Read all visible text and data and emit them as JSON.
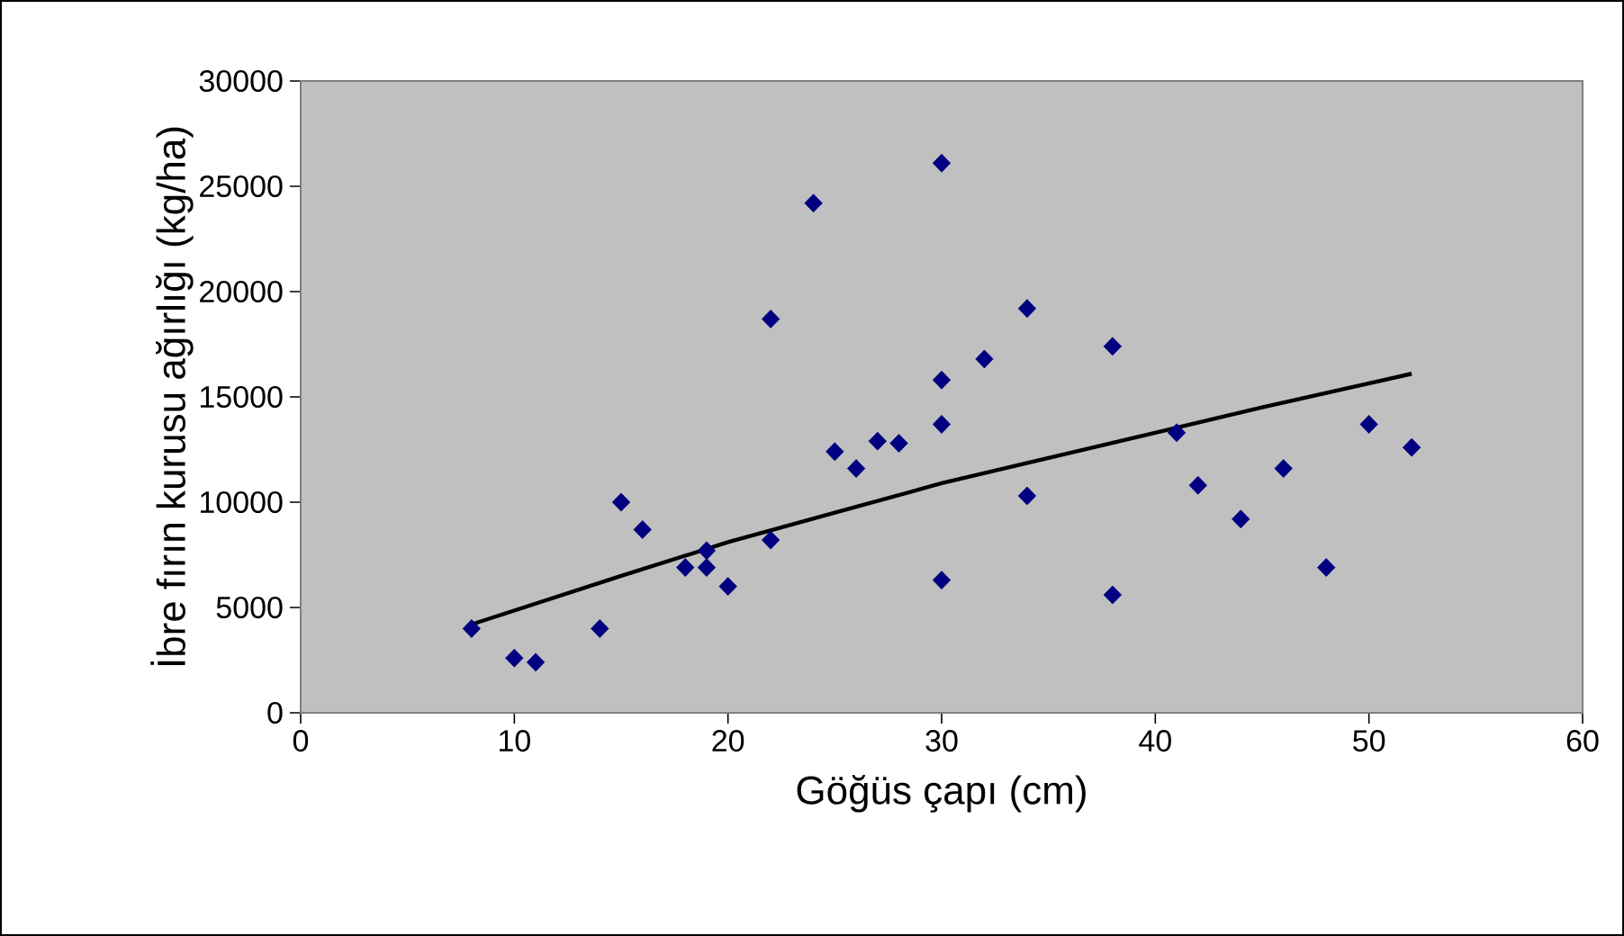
{
  "chart_data": {
    "type": "scatter",
    "xlabel": "Göğüs çapı (cm)",
    "ylabel": "İbre fırın kurusu ağırlığı (kg/ha)",
    "xlim": [
      0,
      60
    ],
    "ylim": [
      0,
      30000
    ],
    "xticks": [
      0,
      10,
      20,
      30,
      40,
      50,
      60
    ],
    "yticks": [
      0,
      5000,
      10000,
      15000,
      20000,
      25000,
      30000
    ],
    "series": [
      {
        "marker": "diamond",
        "color": "#000080",
        "x": [
          8,
          10,
          11,
          14,
          15,
          16,
          18,
          19,
          19,
          20,
          22,
          22,
          24,
          25,
          26,
          27,
          28,
          30,
          30,
          30,
          30,
          32,
          34,
          34,
          38,
          38,
          41,
          42,
          44,
          46,
          48,
          50,
          52
        ],
        "values": [
          4000,
          2600,
          2400,
          4000,
          10000,
          8700,
          6900,
          7700,
          6900,
          6000,
          18700,
          8200,
          24200,
          12400,
          11600,
          12900,
          12800,
          26100,
          15800,
          13700,
          6300,
          16800,
          19200,
          10300,
          17400,
          5600,
          13300,
          10800,
          9200,
          11600,
          6900,
          13700,
          12600
        ]
      },
      {
        "type": "line",
        "marker": "none",
        "color": "#000000",
        "x": [
          8,
          15,
          20,
          25,
          30,
          35,
          40,
          45,
          52
        ],
        "values": [
          4200,
          6500,
          8100,
          9500,
          10900,
          12100,
          13300,
          14500,
          16100
        ]
      }
    ]
  }
}
